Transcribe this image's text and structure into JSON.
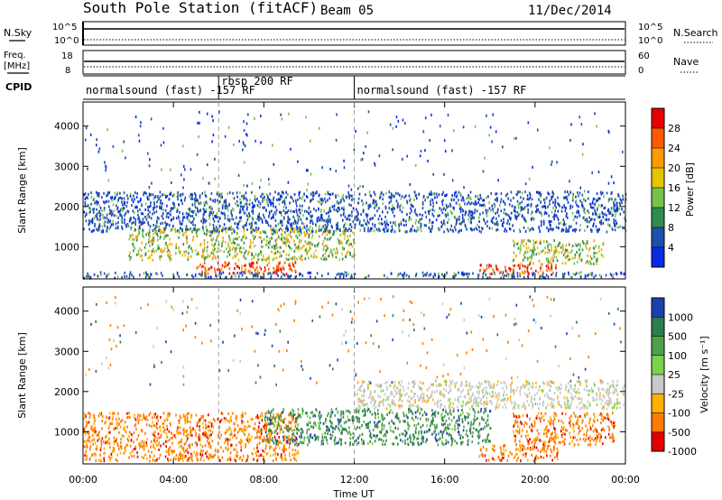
{
  "header": {
    "station": "South Pole Station (fitACF)",
    "beam": "Beam 05",
    "date": "11/Dec/2014"
  },
  "top_panels": {
    "nsky_label": "N.Sky",
    "nsearch_label": "N.Search",
    "nsky_ticks": [
      "10^5",
      "10^0"
    ],
    "nsearch_ticks": [
      "10^5",
      "10^0"
    ],
    "freq_label_1": "Freq.",
    "freq_label_2": "[MHz]",
    "freq_ticks": [
      "18",
      "8"
    ],
    "nave_label": "Nave",
    "nave_ticks": [
      "60",
      "0"
    ],
    "cpid_label": "CPID",
    "cpid_segments": [
      {
        "label": "normalsound (fast) -157 RF",
        "start_h": 0,
        "end_h": 6
      },
      {
        "label": "rbsp 200 RF",
        "start_h": 6,
        "end_h": 12
      },
      {
        "label": "normalsound (fast) -157 RF",
        "start_h": 12,
        "end_h": 24
      }
    ]
  },
  "power_colorbar": {
    "label": "Power [dB]",
    "ticks": [
      "28",
      "24",
      "20",
      "16",
      "12",
      "8",
      "4"
    ],
    "colors": [
      "#e60000",
      "#ff5a00",
      "#ff9a00",
      "#e6c400",
      "#79c24a",
      "#2f8c4f",
      "#1f4faa",
      "#0a2be6"
    ]
  },
  "velocity_colorbar": {
    "label": "Velocity [m s⁻¹]",
    "ticks": [
      "1000",
      "500",
      "100",
      "25",
      "-25",
      "-100",
      "-500",
      "-1000"
    ],
    "colors": [
      "#1f3fb0",
      "#2e7d4f",
      "#4fa04a",
      "#7ad34a",
      "#c8c8c8",
      "#ffb000",
      "#ff7a00",
      "#e00000"
    ]
  },
  "chart_data": [
    {
      "type": "heatmap",
      "title": "",
      "ylabel": "Slant Range [km]",
      "yticks": [
        "1000",
        "2000",
        "3000",
        "4000"
      ],
      "ylim": [
        200,
        4600
      ],
      "xlim_hours": [
        0,
        24
      ],
      "bands": [
        {
          "range_km": [
            250,
            400
          ],
          "h": [
            0,
            24
          ],
          "level": "low"
        },
        {
          "range_km": [
            350,
            650
          ],
          "h": [
            5,
            9.5
          ],
          "level": "high"
        },
        {
          "range_km": [
            700,
            1500
          ],
          "h": [
            2,
            12
          ],
          "level": "mid"
        },
        {
          "range_km": [
            1400,
            2400
          ],
          "h": [
            0,
            24
          ],
          "level": "low"
        },
        {
          "range_km": [
            350,
            600
          ],
          "h": [
            17.5,
            21
          ],
          "level": "high"
        },
        {
          "range_km": [
            600,
            1200
          ],
          "h": [
            19,
            23
          ],
          "level": "mid"
        }
      ]
    },
    {
      "type": "heatmap",
      "title": "",
      "xlabel": "Time UT",
      "ylabel": "Slant Range [km]",
      "yticks": [
        "1000",
        "2000",
        "3000",
        "4000"
      ],
      "xticks": [
        "00:00",
        "04:00",
        "08:00",
        "12:00",
        "16:00",
        "20:00",
        "00:00"
      ],
      "ylim": [
        200,
        4600
      ],
      "xlim_hours": [
        0,
        24
      ],
      "bands": [
        {
          "range_km": [
            300,
            1500
          ],
          "h": [
            0,
            9.5
          ],
          "level": "negative"
        },
        {
          "range_km": [
            700,
            1600
          ],
          "h": [
            8,
            18
          ],
          "level": "positive"
        },
        {
          "range_km": [
            1600,
            2300
          ],
          "h": [
            12,
            24
          ],
          "level": "near-zero"
        },
        {
          "range_km": [
            300,
            700
          ],
          "h": [
            17.5,
            21
          ],
          "level": "negative"
        },
        {
          "range_km": [
            700,
            1500
          ],
          "h": [
            19,
            23.5
          ],
          "level": "negative"
        }
      ]
    }
  ]
}
